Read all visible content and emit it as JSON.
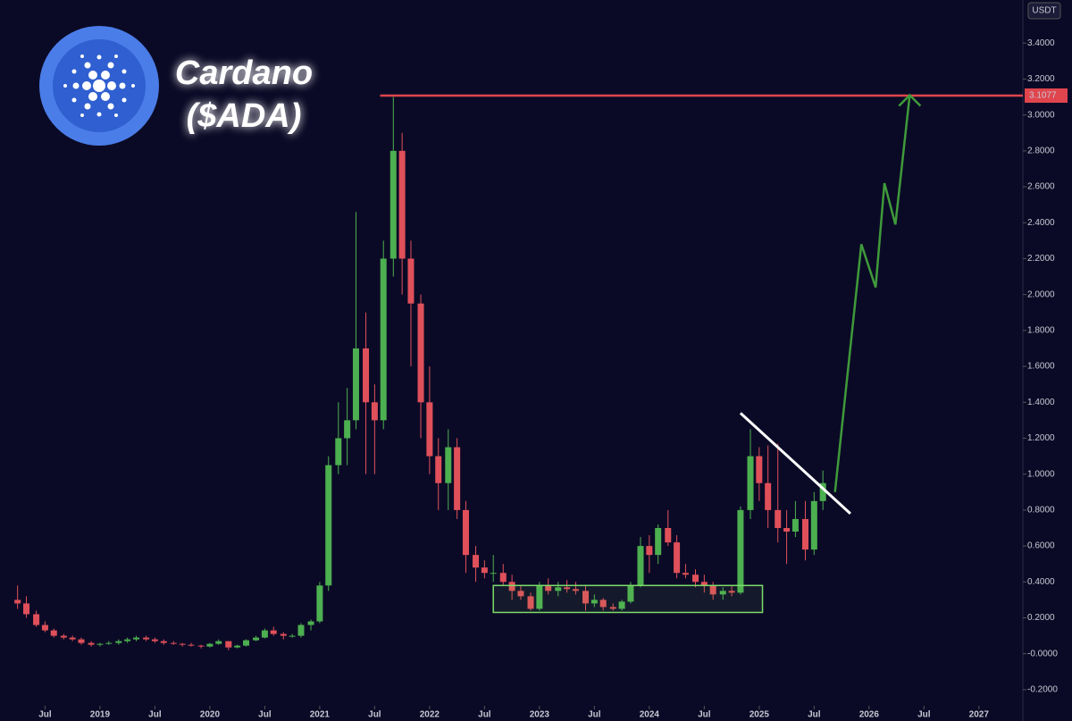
{
  "chart_data": {
    "type": "candlestick",
    "title": "Cardano",
    "subtitle": "($ADA)",
    "currency": "USDT",
    "xlim": [
      2018.09,
      2027.4
    ],
    "ylim": [
      -0.29,
      3.64
    ],
    "xticks": [
      {
        "value": 2018.5,
        "label": "Jul"
      },
      {
        "value": 2019,
        "label": "2019"
      },
      {
        "value": 2019.5,
        "label": "Jul"
      },
      {
        "value": 2020,
        "label": "2020"
      },
      {
        "value": 2020.5,
        "label": "Jul"
      },
      {
        "value": 2021,
        "label": "2021"
      },
      {
        "value": 2021.5,
        "label": "Jul"
      },
      {
        "value": 2022,
        "label": "2022"
      },
      {
        "value": 2022.5,
        "label": "Jul"
      },
      {
        "value": 2023,
        "label": "2023"
      },
      {
        "value": 2023.5,
        "label": "Jul"
      },
      {
        "value": 2024,
        "label": "2024"
      },
      {
        "value": 2024.5,
        "label": "Jul"
      },
      {
        "value": 2025,
        "label": "2025"
      },
      {
        "value": 2025.5,
        "label": "Jul"
      },
      {
        "value": 2026,
        "label": "2026"
      },
      {
        "value": 2026.5,
        "label": "Jul"
      },
      {
        "value": 2027,
        "label": "2027"
      }
    ],
    "yticks": [
      {
        "value": -0.2,
        "label": "-0.2000"
      },
      {
        "value": 0,
        "label": "-0.0000"
      },
      {
        "value": 0.2,
        "label": "0.2000"
      },
      {
        "value": 0.4,
        "label": "0.4000"
      },
      {
        "value": 0.6,
        "label": "0.6000"
      },
      {
        "value": 0.8,
        "label": "0.8000"
      },
      {
        "value": 1.0,
        "label": "1.0000"
      },
      {
        "value": 1.2,
        "label": "1.2000"
      },
      {
        "value": 1.4,
        "label": "1.4000"
      },
      {
        "value": 1.6,
        "label": "1.6000"
      },
      {
        "value": 1.8,
        "label": "1.8000"
      },
      {
        "value": 2.0,
        "label": "2.0000"
      },
      {
        "value": 2.2,
        "label": "2.2000"
      },
      {
        "value": 2.4,
        "label": "2.4000"
      },
      {
        "value": 2.6,
        "label": "2.6000"
      },
      {
        "value": 2.8,
        "label": "2.8000"
      },
      {
        "value": 3.0,
        "label": "3.0000"
      },
      {
        "value": 3.2,
        "label": "3.2000"
      },
      {
        "value": 3.4,
        "label": "3.4000"
      }
    ],
    "up_color": "#4caf50",
    "down_color": "#e0505a",
    "x": [
      2018.25,
      2018.33,
      2018.42,
      2018.5,
      2018.58,
      2018.67,
      2018.75,
      2018.83,
      2018.92,
      2019.0,
      2019.08,
      2019.17,
      2019.25,
      2019.33,
      2019.42,
      2019.5,
      2019.58,
      2019.67,
      2019.75,
      2019.83,
      2019.92,
      2020.0,
      2020.08,
      2020.17,
      2020.25,
      2020.33,
      2020.42,
      2020.5,
      2020.58,
      2020.67,
      2020.75,
      2020.83,
      2020.92,
      2021.0,
      2021.08,
      2021.17,
      2021.25,
      2021.33,
      2021.42,
      2021.5,
      2021.58,
      2021.67,
      2021.75,
      2021.83,
      2021.92,
      2022.0,
      2022.08,
      2022.17,
      2022.25,
      2022.33,
      2022.42,
      2022.5,
      2022.58,
      2022.67,
      2022.75,
      2022.83,
      2022.92,
      2023.0,
      2023.08,
      2023.17,
      2023.25,
      2023.33,
      2023.42,
      2023.5,
      2023.58,
      2023.67,
      2023.75,
      2023.83,
      2023.92,
      2024.0,
      2024.08,
      2024.17,
      2024.25,
      2024.33,
      2024.42,
      2024.5,
      2024.58,
      2024.67,
      2024.75,
      2024.83,
      2024.92,
      2025.0,
      2025.08,
      2025.17,
      2025.25,
      2025.33,
      2025.42,
      2025.5,
      2025.58
    ],
    "open": [
      0.3,
      0.28,
      0.22,
      0.16,
      0.13,
      0.1,
      0.09,
      0.08,
      0.06,
      0.05,
      0.055,
      0.06,
      0.07,
      0.08,
      0.09,
      0.08,
      0.07,
      0.06,
      0.055,
      0.05,
      0.045,
      0.04,
      0.055,
      0.07,
      0.035,
      0.045,
      0.075,
      0.09,
      0.13,
      0.11,
      0.1,
      0.1,
      0.16,
      0.18,
      0.38,
      1.05,
      1.2,
      1.3,
      1.7,
      1.4,
      1.3,
      2.2,
      2.8,
      2.2,
      1.95,
      1.4,
      1.1,
      0.95,
      1.15,
      0.8,
      0.55,
      0.48,
      0.45,
      0.45,
      0.4,
      0.35,
      0.32,
      0.25,
      0.38,
      0.35,
      0.37,
      0.36,
      0.35,
      0.28,
      0.3,
      0.26,
      0.25,
      0.29,
      0.38,
      0.6,
      0.55,
      0.7,
      0.62,
      0.45,
      0.44,
      0.4,
      0.38,
      0.33,
      0.35,
      0.34,
      0.8,
      1.1,
      0.95,
      0.8,
      0.7,
      0.68,
      0.75,
      0.58,
      0.85
    ],
    "high": [
      0.38,
      0.32,
      0.24,
      0.18,
      0.14,
      0.11,
      0.1,
      0.09,
      0.07,
      0.06,
      0.07,
      0.08,
      0.09,
      0.1,
      0.1,
      0.09,
      0.08,
      0.07,
      0.06,
      0.06,
      0.05,
      0.06,
      0.08,
      0.07,
      0.05,
      0.08,
      0.1,
      0.14,
      0.15,
      0.12,
      0.11,
      0.17,
      0.19,
      0.4,
      1.1,
      1.4,
      1.48,
      2.46,
      1.9,
      1.5,
      2.3,
      3.1,
      2.9,
      2.3,
      2.0,
      1.6,
      1.2,
      1.25,
      1.2,
      0.85,
      0.6,
      0.52,
      0.55,
      0.5,
      0.44,
      0.38,
      0.34,
      0.4,
      0.42,
      0.4,
      0.41,
      0.4,
      0.38,
      0.33,
      0.31,
      0.28,
      0.3,
      0.4,
      0.65,
      0.66,
      0.72,
      0.8,
      0.66,
      0.5,
      0.47,
      0.44,
      0.4,
      0.37,
      0.38,
      0.82,
      1.25,
      1.15,
      1.16,
      1.17,
      0.8,
      0.85,
      0.85,
      0.9,
      1.02
    ],
    "low": [
      0.25,
      0.2,
      0.15,
      0.12,
      0.09,
      0.08,
      0.07,
      0.05,
      0.04,
      0.04,
      0.05,
      0.05,
      0.06,
      0.07,
      0.07,
      0.06,
      0.05,
      0.05,
      0.04,
      0.04,
      0.03,
      0.035,
      0.05,
      0.02,
      0.03,
      0.04,
      0.07,
      0.085,
      0.1,
      0.08,
      0.09,
      0.09,
      0.13,
      0.17,
      0.35,
      1.0,
      1.05,
      1.25,
      1.0,
      1.0,
      1.25,
      2.1,
      2.0,
      1.6,
      1.2,
      1.0,
      0.8,
      0.8,
      0.75,
      0.45,
      0.4,
      0.42,
      0.4,
      0.38,
      0.3,
      0.3,
      0.24,
      0.24,
      0.33,
      0.32,
      0.34,
      0.33,
      0.24,
      0.26,
      0.24,
      0.24,
      0.24,
      0.28,
      0.37,
      0.45,
      0.5,
      0.6,
      0.42,
      0.42,
      0.37,
      0.34,
      0.3,
      0.3,
      0.32,
      0.33,
      0.75,
      0.85,
      0.7,
      0.62,
      0.5,
      0.65,
      0.52,
      0.55,
      0.8
    ],
    "close": [
      0.28,
      0.22,
      0.16,
      0.13,
      0.1,
      0.09,
      0.08,
      0.06,
      0.05,
      0.055,
      0.06,
      0.07,
      0.08,
      0.09,
      0.08,
      0.07,
      0.06,
      0.055,
      0.05,
      0.045,
      0.04,
      0.055,
      0.07,
      0.035,
      0.045,
      0.075,
      0.09,
      0.13,
      0.11,
      0.1,
      0.1,
      0.16,
      0.18,
      0.38,
      1.05,
      1.2,
      1.3,
      1.7,
      1.4,
      1.3,
      2.2,
      2.8,
      2.2,
      1.95,
      1.4,
      1.1,
      0.95,
      1.15,
      0.8,
      0.55,
      0.48,
      0.45,
      0.45,
      0.4,
      0.35,
      0.32,
      0.25,
      0.38,
      0.35,
      0.37,
      0.36,
      0.35,
      0.28,
      0.3,
      0.26,
      0.25,
      0.29,
      0.38,
      0.6,
      0.55,
      0.7,
      0.62,
      0.45,
      0.44,
      0.4,
      0.38,
      0.33,
      0.35,
      0.34,
      0.8,
      1.1,
      0.95,
      0.8,
      0.7,
      0.68,
      0.75,
      0.58,
      0.85,
      0.95
    ],
    "price_line": {
      "value": 3.1077,
      "x_start": 2021.55,
      "color": "#e0454d"
    },
    "support_zone": {
      "x": [
        2022.58,
        2025.03
      ],
      "y": [
        0.23,
        0.38
      ],
      "color": "#7ddc6a"
    },
    "trendline": {
      "x": [
        2024.83,
        2025.83
      ],
      "y": [
        1.34,
        0.78
      ],
      "color": "#ffffff"
    },
    "projection": {
      "x": [
        2025.69,
        2025.93,
        2026.06,
        2026.14,
        2026.24,
        2026.37
      ],
      "y": [
        0.9,
        2.28,
        2.04,
        2.62,
        2.39,
        3.11
      ],
      "color": "#3f9a3a"
    }
  }
}
